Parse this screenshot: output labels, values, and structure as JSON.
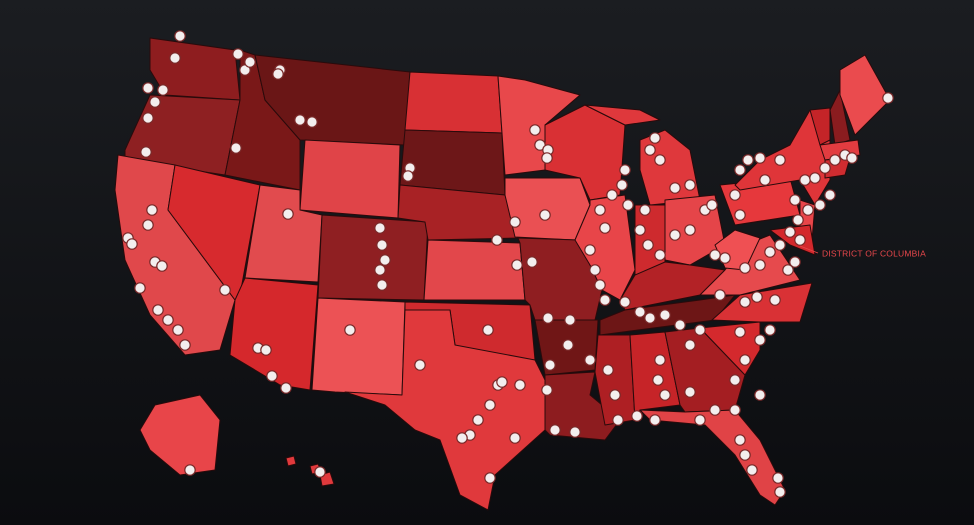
{
  "map": {
    "labels": [
      "DISTRICT OF COLUMBIA"
    ]
  }
}
